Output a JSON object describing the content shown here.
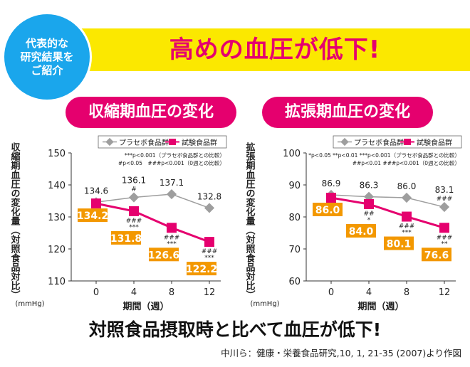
{
  "badge": {
    "lines": [
      "代表的な",
      "研究結果を",
      "ご紹介"
    ]
  },
  "headline": "高めの血圧が低下!",
  "conclusion": "対照食品摂取時と比べて血圧が低下!",
  "citation": "中川ら：健康・栄養食品研究,10, 1, 21-35 (2007)より作図",
  "colors": {
    "accent": "#e5006e",
    "banner": "#fbe800",
    "badge": "#1aa6ec",
    "placebo": "#9e9e9e",
    "label_box": "#f39800"
  },
  "chart_data": [
    {
      "type": "line",
      "title": "収縮期血圧の変化",
      "ylabel": "収縮期血圧の変化量（対照食品対比）",
      "yunit": "(mmHg)",
      "xlabel": "期間（週）",
      "ylim": [
        110,
        150
      ],
      "yticks": [
        "110",
        "120",
        "130",
        "140",
        "150"
      ],
      "categories": [
        "0",
        "4",
        "8",
        "12"
      ],
      "legend": [
        "プラセボ食品群",
        "試験食品群"
      ],
      "notes": [
        "***p<0.001（プラセボ食品群との比較）",
        "#p<0.05　###p<0.001（0週との比較）"
      ],
      "series": [
        {
          "name": "プラセボ食品群",
          "values": [
            134.6,
            136.1,
            137.1,
            132.8
          ],
          "labels": [
            "134.6",
            "136.1",
            "137.1",
            "132.8"
          ],
          "marks": [
            "",
            "#",
            "",
            ""
          ]
        },
        {
          "name": "試験食品群",
          "values": [
            134.2,
            131.8,
            126.6,
            122.2
          ],
          "labels": [
            "134.2",
            "131.8",
            "126.6",
            "122.2"
          ],
          "marks": [
            "",
            "###|***",
            "###|***",
            "###|***"
          ]
        }
      ]
    },
    {
      "type": "line",
      "title": "拡張期血圧の変化",
      "ylabel": "拡張期血圧の変化量（対照食品対比）",
      "yunit": "(mmHg)",
      "xlabel": "期間（週）",
      "ylim": [
        60,
        100
      ],
      "yticks": [
        "60",
        "70",
        "80",
        "90",
        "100"
      ],
      "categories": [
        "0",
        "4",
        "8",
        "12"
      ],
      "legend": [
        "プラセボ食品群",
        "試験食品群"
      ],
      "notes": [
        "*p<0.05 **p<0.01 ***p<0.001（プラセボ食品群との比較）",
        "##p<0.01 ###p<0.001（0週との比較）"
      ],
      "series": [
        {
          "name": "プラセボ食品群",
          "values": [
            86.9,
            86.3,
            86.0,
            83.1
          ],
          "labels": [
            "86.9",
            "86.3",
            "86.0",
            "83.1"
          ],
          "marks": [
            "",
            "",
            "",
            "###"
          ]
        },
        {
          "name": "試験食品群",
          "values": [
            86.0,
            84.0,
            80.1,
            76.6
          ],
          "labels": [
            "86.0",
            "84.0",
            "80.1",
            "76.6"
          ],
          "marks": [
            "",
            "##|*",
            "###|***",
            "###|**"
          ]
        }
      ]
    }
  ]
}
